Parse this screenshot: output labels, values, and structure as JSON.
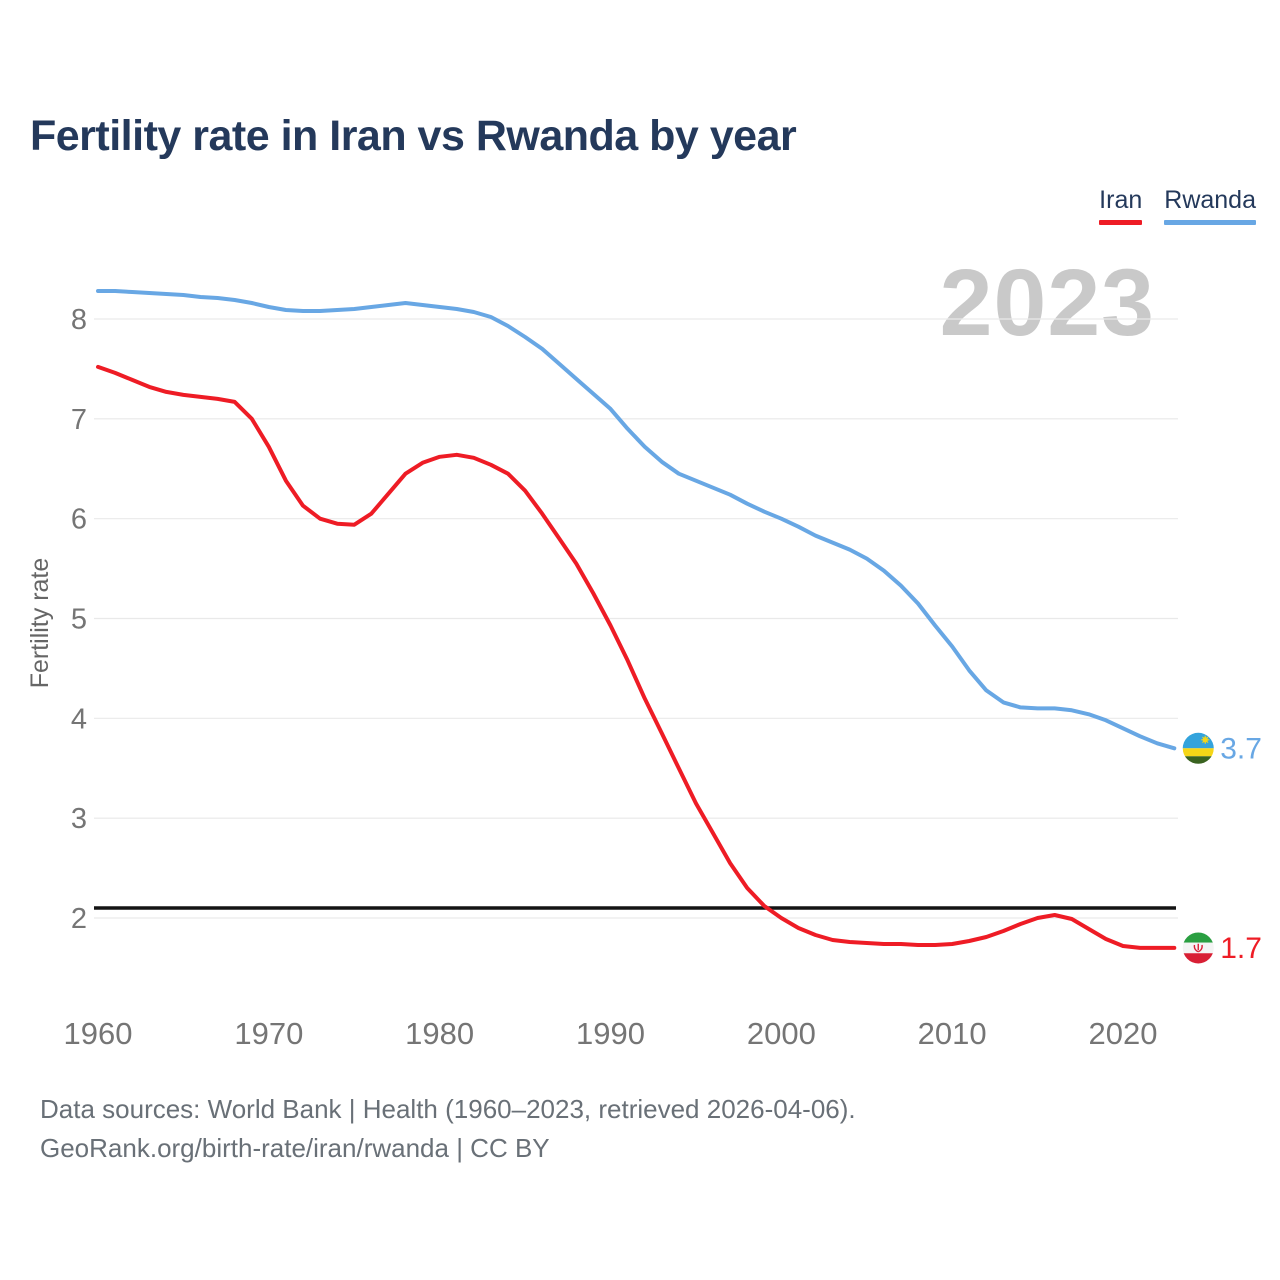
{
  "header": {
    "title": "Fertility rate in Iran vs Rwanda by year"
  },
  "legend": {
    "items": [
      {
        "label": "Iran",
        "color": "#ee1c25"
      },
      {
        "label": "Rwanda",
        "color": "#68a7e4"
      }
    ]
  },
  "chart_data": {
    "type": "line",
    "title": "Fertility rate in Iran vs Rwanda by year",
    "xlabel": "",
    "ylabel": "Fertility rate",
    "watermark_year": "2023",
    "grid": "horizontal",
    "legend_position": "top-right",
    "xlim": [
      1959.5,
      2023.5
    ],
    "ylim": [
      1.4,
      8.6
    ],
    "xticks": [
      1960,
      1970,
      1980,
      1990,
      2000,
      2010,
      2020
    ],
    "yticks": [
      2,
      3,
      4,
      5,
      6,
      7,
      8
    ],
    "reference_line": {
      "value": 2.1,
      "color": "#141414"
    },
    "years": [
      1960,
      1961,
      1962,
      1963,
      1964,
      1965,
      1966,
      1967,
      1968,
      1969,
      1970,
      1971,
      1972,
      1973,
      1974,
      1975,
      1976,
      1977,
      1978,
      1979,
      1980,
      1981,
      1982,
      1983,
      1984,
      1985,
      1986,
      1987,
      1988,
      1989,
      1990,
      1991,
      1992,
      1993,
      1994,
      1995,
      1996,
      1997,
      1998,
      1999,
      2000,
      2001,
      2002,
      2003,
      2004,
      2005,
      2006,
      2007,
      2008,
      2009,
      2010,
      2011,
      2012,
      2013,
      2014,
      2015,
      2016,
      2017,
      2018,
      2019,
      2020,
      2021,
      2022,
      2023
    ],
    "series": [
      {
        "name": "Iran",
        "color": "#ee1c25",
        "end_label": "1.7",
        "flag": "iran-flag-icon",
        "values": [
          7.52,
          7.46,
          7.39,
          7.32,
          7.27,
          7.24,
          7.22,
          7.2,
          7.17,
          7.0,
          6.72,
          6.38,
          6.13,
          6.0,
          5.95,
          5.94,
          6.05,
          6.25,
          6.45,
          6.56,
          6.62,
          6.64,
          6.61,
          6.54,
          6.45,
          6.28,
          6.05,
          5.8,
          5.55,
          5.25,
          4.93,
          4.58,
          4.2,
          3.85,
          3.5,
          3.15,
          2.85,
          2.55,
          2.3,
          2.12,
          2.0,
          1.9,
          1.83,
          1.78,
          1.76,
          1.75,
          1.74,
          1.74,
          1.73,
          1.73,
          1.74,
          1.77,
          1.81,
          1.87,
          1.94,
          2.0,
          2.03,
          1.99,
          1.89,
          1.79,
          1.72,
          1.7,
          1.7,
          1.7
        ]
      },
      {
        "name": "Rwanda",
        "color": "#68a7e4",
        "end_label": "3.7",
        "flag": "rwanda-flag-icon",
        "values": [
          8.28,
          8.28,
          8.27,
          8.26,
          8.25,
          8.24,
          8.22,
          8.21,
          8.19,
          8.16,
          8.12,
          8.09,
          8.08,
          8.08,
          8.09,
          8.1,
          8.12,
          8.14,
          8.16,
          8.14,
          8.12,
          8.1,
          8.07,
          8.02,
          7.93,
          7.82,
          7.7,
          7.55,
          7.4,
          7.25,
          7.1,
          6.9,
          6.72,
          6.57,
          6.45,
          6.38,
          6.31,
          6.24,
          6.15,
          6.07,
          6.0,
          5.92,
          5.83,
          5.76,
          5.69,
          5.6,
          5.48,
          5.33,
          5.15,
          4.93,
          4.72,
          4.48,
          4.28,
          4.16,
          4.11,
          4.1,
          4.1,
          4.08,
          4.04,
          3.98,
          3.9,
          3.82,
          3.75,
          3.7
        ]
      }
    ]
  },
  "footer": {
    "line1": "Data sources: World Bank | Health (1960–2023, retrieved 2026-04-06).",
    "line2": "GeoRank.org/birth-rate/iran/rwanda | CC BY"
  }
}
